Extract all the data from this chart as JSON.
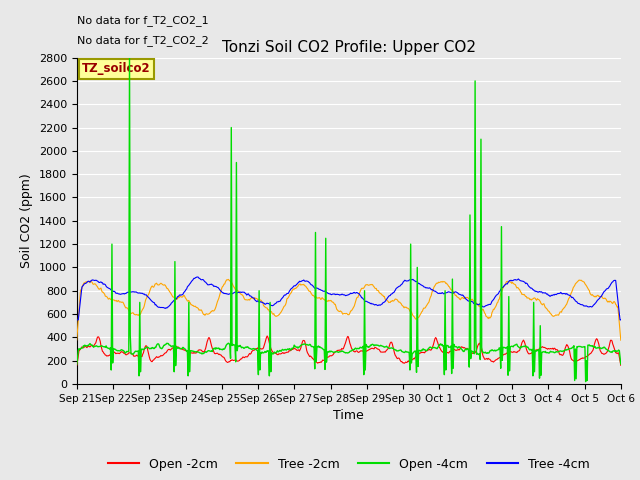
{
  "title": "Tonzi Soil CO2 Profile: Upper CO2",
  "ylabel": "Soil CO2 (ppm)",
  "xlabel": "Time",
  "annotation1": "No data for f_T2_CO2_1",
  "annotation2": "No data for f_T2_CO2_2",
  "legend_label": "TZ_soilco2",
  "legend_entries": [
    "Open -2cm",
    "Tree -2cm",
    "Open -4cm",
    "Tree -4cm"
  ],
  "legend_colors": [
    "#ff0000",
    "#ffa500",
    "#00dd00",
    "#0000ff"
  ],
  "ylim": [
    0,
    2800
  ],
  "yticks": [
    0,
    200,
    400,
    600,
    800,
    1000,
    1200,
    1400,
    1600,
    1800,
    2000,
    2200,
    2400,
    2600,
    2800
  ],
  "tick_labels": [
    "Sep 21",
    "Sep 22",
    "Sep 23",
    "Sep 24",
    "Sep 25",
    "Sep 26",
    "Sep 27",
    "Sep 28",
    "Sep 29",
    "Sep 30",
    "Oct 1",
    "Oct 2",
    "Oct 3",
    "Oct 4",
    "Oct 5",
    "Oct 6"
  ],
  "background_color": "#e8e8e8",
  "plot_bg_color": "#e8e8e8",
  "grid_color": "#ffffff"
}
